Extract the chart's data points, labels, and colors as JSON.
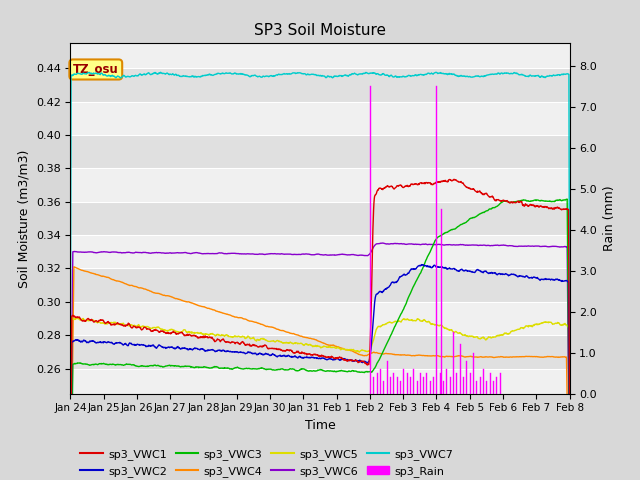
{
  "title": "SP3 Soil Moisture",
  "ylabel_left": "Soil Moisture (m3/m3)",
  "ylabel_right": "Rain (mm)",
  "xlabel": "Time",
  "ylim_left": [
    0.245,
    0.455
  ],
  "ylim_right": [
    0.0,
    8.55
  ],
  "yticks_left": [
    0.26,
    0.28,
    0.3,
    0.32,
    0.34,
    0.36,
    0.38,
    0.4,
    0.42,
    0.44
  ],
  "yticks_right": [
    0.0,
    1.0,
    2.0,
    3.0,
    4.0,
    5.0,
    6.0,
    7.0,
    8.0
  ],
  "tz_label": "TZ_osu",
  "colors": {
    "sp3_VWC1": "#dd0000",
    "sp3_VWC2": "#0000cc",
    "sp3_VWC3": "#00bb00",
    "sp3_VWC4": "#ff8800",
    "sp3_VWC5": "#dddd00",
    "sp3_VWC6": "#8800cc",
    "sp3_VWC7": "#00cccc",
    "sp3_Rain": "#ff00ff"
  },
  "background_color": "#d8d8d8",
  "plot_background_light": "#f0f0f0",
  "plot_background_dark": "#e0e0e0"
}
